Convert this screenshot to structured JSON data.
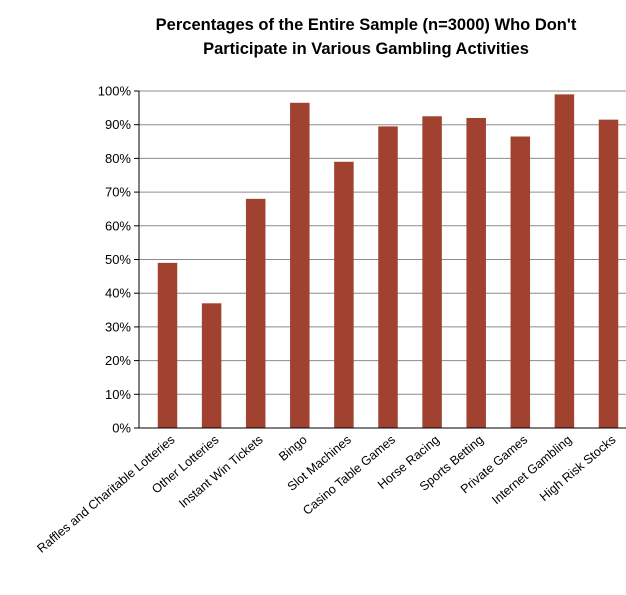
{
  "chart_data": {
    "type": "bar",
    "title_lines": [
      "Percentages of the Entire Sample (n=3000) Who Don't",
      "Participate in Various Gambling Activities"
    ],
    "xlabel": "",
    "ylabel": "",
    "categories": [
      "Raffles and Charitable Lotteries",
      "Other Lotteries",
      "Instant Win Tickets",
      "Bingo",
      "Slot Machines",
      "Casino Table Games",
      "Horse Racing",
      "Sports Betting",
      "Private Games",
      "Internet Gambling",
      "High Risk Stocks"
    ],
    "values": [
      49,
      37,
      68,
      96.5,
      79,
      89.5,
      92.5,
      92,
      86.5,
      99,
      91.5
    ],
    "ylim": [
      0,
      100
    ],
    "yticks": [
      "0%",
      "10%",
      "20%",
      "30%",
      "40%",
      "50%",
      "60%",
      "70%",
      "80%",
      "90%",
      "100%"
    ],
    "grid": true,
    "legend": "none",
    "bar_color": "#a0422f",
    "grid_color": "#8c8c8c"
  }
}
